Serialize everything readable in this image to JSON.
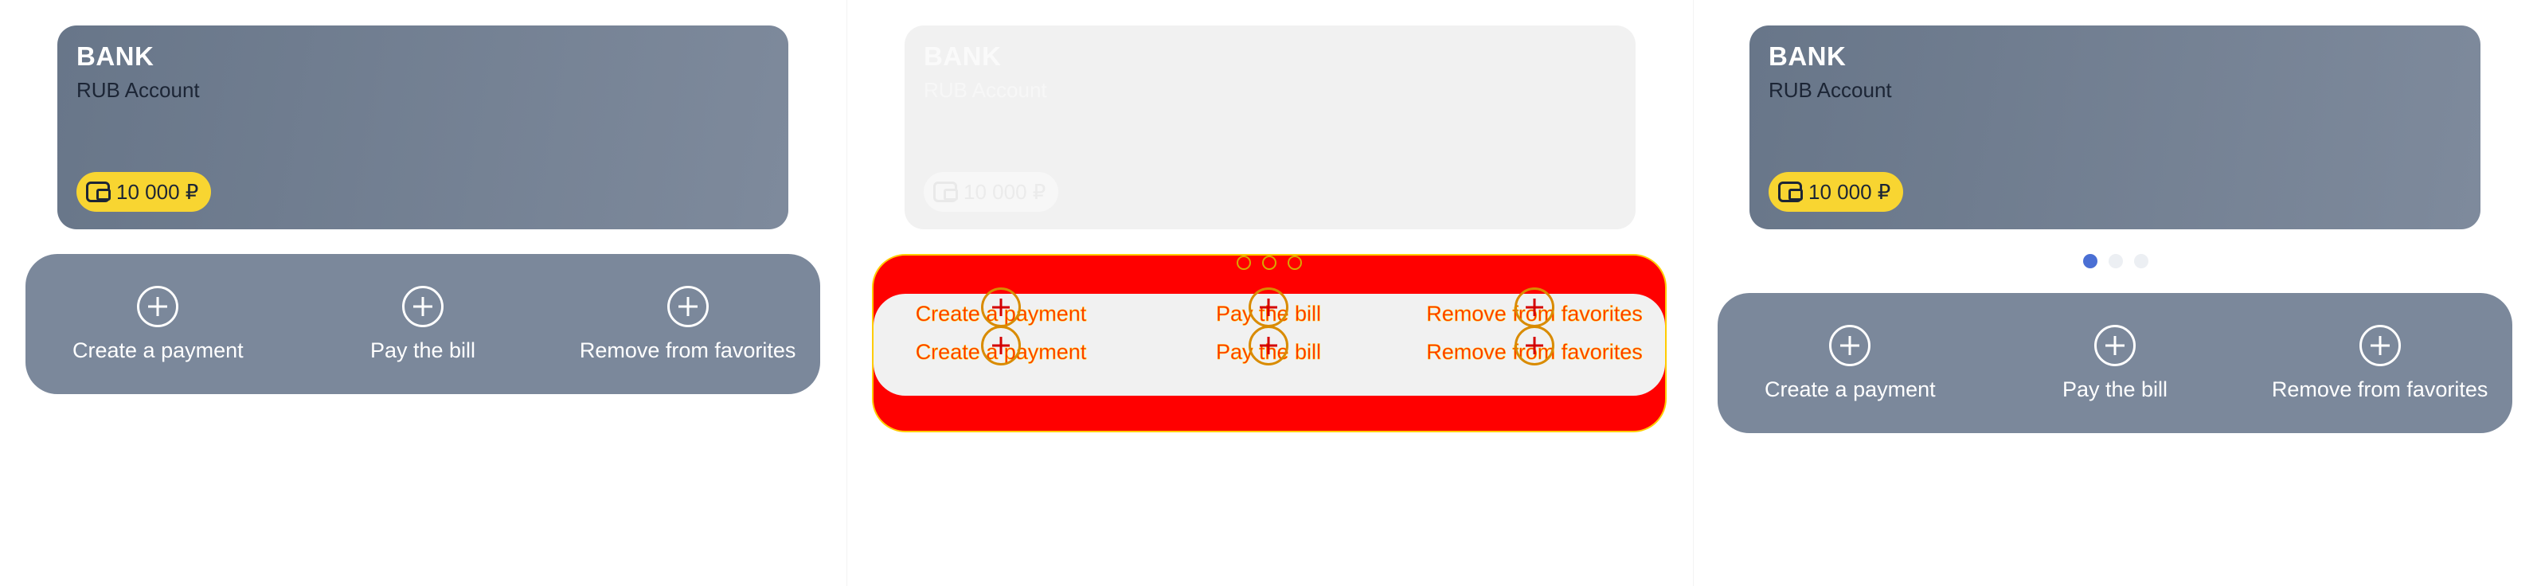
{
  "account_card": {
    "bank_name": "BANK",
    "account_name": "RUB Account",
    "balance": "10 000 ₽",
    "wallet_icon": "wallet-icon"
  },
  "actions": [
    {
      "label": "Create a payment",
      "icon": "plus-circle-icon"
    },
    {
      "label": "Pay the bill",
      "icon": "plus-circle-icon"
    },
    {
      "label": "Remove from favorites",
      "icon": "plus-circle-icon"
    }
  ],
  "pager": {
    "count": 3,
    "active_index": 0
  },
  "colors": {
    "card_gradient_start": "#687689",
    "card_gradient_end": "#7e8a9c",
    "actions_bg": "#7b889b",
    "badge_bg": "#f8d531",
    "pager_active": "#4a6fd4",
    "debug_overlay": "#ff0000"
  }
}
